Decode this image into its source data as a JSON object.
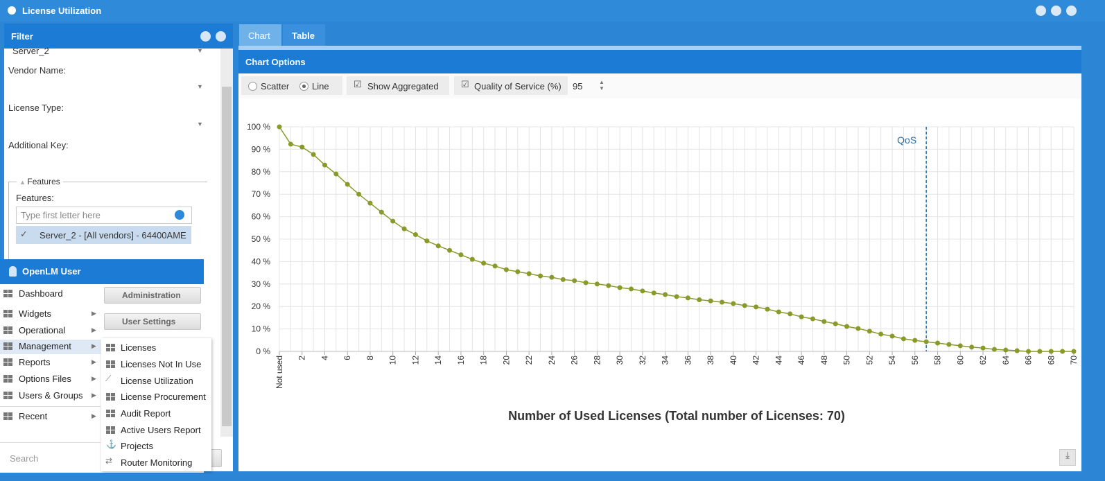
{
  "window": {
    "title": "License Utilization"
  },
  "filter": {
    "title": "Filter",
    "server": "Server_2",
    "fields": [
      "Vendor Name:",
      "License Type:",
      "Additional Key:"
    ],
    "features_group": "Features",
    "features_label": "Features:",
    "search_placeholder": "Type first letter here",
    "selected_feature": "Server_2 - [All vendors] - 64400AME"
  },
  "user_menu": {
    "title": "OpenLM User",
    "items": [
      "Dashboard",
      "Widgets",
      "Operational",
      "Management",
      "Reports",
      "Options Files",
      "Users & Groups",
      "Recent"
    ],
    "buttons": [
      "Administration",
      "User Settings"
    ],
    "submenu": [
      "Licenses",
      "Licenses Not In Use",
      "License Utilization",
      "License Procurement",
      "Audit Report",
      "Active Users Report",
      "Projects",
      "Router Monitoring"
    ],
    "search": "Search"
  },
  "tabs": [
    "Chart",
    "Table"
  ],
  "chart_options": {
    "title": "Chart Options",
    "modes": [
      "Scatter",
      "Line"
    ],
    "show_aggregated": "Show Aggregated",
    "qos_label": "Quality of Service (%)",
    "qos_value": 95
  },
  "chart_data": {
    "type": "line",
    "x": [
      0,
      1,
      2,
      3,
      4,
      5,
      6,
      7,
      8,
      9,
      10,
      11,
      12,
      13,
      14,
      15,
      16,
      17,
      18,
      19,
      20,
      21,
      22,
      23,
      24,
      25,
      26,
      27,
      28,
      29,
      30,
      31,
      32,
      33,
      34,
      35,
      36,
      37,
      38,
      39,
      40,
      41,
      42,
      43,
      44,
      45,
      46,
      47,
      48,
      49,
      50,
      51,
      52,
      53,
      54,
      55,
      56,
      57,
      58,
      59,
      60,
      61,
      62,
      63,
      64,
      65,
      66,
      67,
      68,
      69,
      70
    ],
    "values": [
      100,
      92.3,
      91,
      87.7,
      83,
      79,
      74.4,
      70,
      66,
      62,
      58,
      54.6,
      52,
      49.2,
      47,
      45,
      43,
      41,
      39.3,
      38,
      36.4,
      35.5,
      34.6,
      33.6,
      33,
      32,
      31.5,
      30.6,
      30,
      29.3,
      28.4,
      27.8,
      26.9,
      26,
      25.3,
      24.4,
      23.8,
      23,
      22.5,
      21.9,
      21.3,
      20.4,
      19.8,
      18.8,
      17.6,
      16.7,
      15.4,
      14.5,
      13.3,
      12.3,
      11.1,
      10.2,
      9,
      7.7,
      6.8,
      5.6,
      4.9,
      4.3,
      3.7,
      3.1,
      2.5,
      1.9,
      1.5,
      0.9,
      0.6,
      0.3,
      0,
      0,
      0,
      0,
      0
    ],
    "color": "#8a9a2a",
    "xlabel": "Number of Used Licenses (Total number of Licenses: 70)",
    "xlim": [
      0,
      70
    ],
    "xticks": [
      {
        "value": 0,
        "label": "Not used"
      },
      2,
      4,
      6,
      8,
      10,
      12,
      14,
      16,
      18,
      20,
      22,
      24,
      26,
      28,
      30,
      32,
      34,
      36,
      38,
      40,
      42,
      44,
      46,
      48,
      50,
      52,
      54,
      56,
      58,
      60,
      62,
      64,
      66,
      68,
      70
    ],
    "ylim": [
      0,
      100
    ],
    "yticks": [
      {
        "value": 0,
        "label": "0 %"
      },
      {
        "value": 10,
        "label": "10 %"
      },
      {
        "value": 20,
        "label": "20 %"
      },
      {
        "value": 30,
        "label": "30 %"
      },
      {
        "value": 40,
        "label": "40 %"
      },
      {
        "value": 50,
        "label": "50 %"
      },
      {
        "value": 60,
        "label": "60 %"
      },
      {
        "value": 70,
        "label": "70 %"
      },
      {
        "value": 80,
        "label": "80 %"
      },
      {
        "value": 90,
        "label": "90 %"
      },
      {
        "value": 100,
        "label": "100 %"
      }
    ],
    "grid": true,
    "annotations": [
      {
        "text": "QoS",
        "x": 57
      }
    ]
  }
}
